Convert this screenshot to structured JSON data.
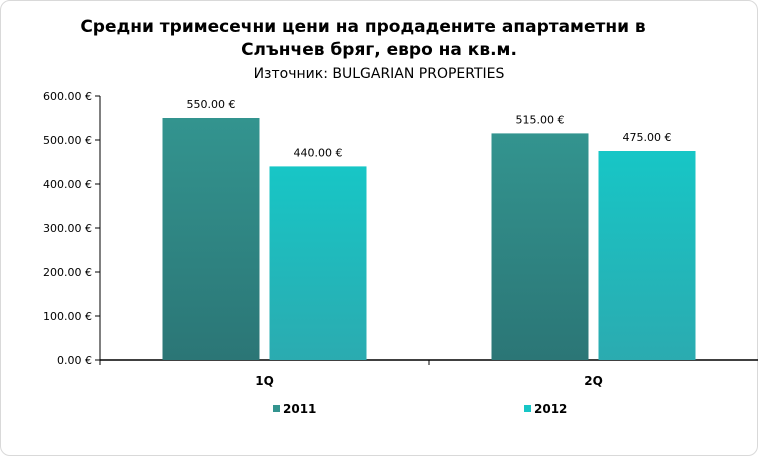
{
  "chart_data": {
    "type": "bar",
    "title_line1": "Средни тримесечни цени на продадените апартаметни в",
    "title_line2": "Слънчев бряг, евро на кв.м.",
    "subtitle": "Източник: BULGARIAN PROPERTIES",
    "categories": [
      "1Q",
      "2Q"
    ],
    "series": [
      {
        "name": "2011",
        "values": [
          550,
          515
        ],
        "color_top": "#33948f",
        "color_bottom": "#2b7676"
      },
      {
        "name": "2012",
        "values": [
          440,
          475
        ],
        "color_top": "#17c6c6",
        "color_bottom": "#2babb0"
      }
    ],
    "data_labels": [
      [
        "550.00 €",
        "515.00 €"
      ],
      [
        "440.00 €",
        "475.00 €"
      ]
    ],
    "yticks": [
      "0.00 €",
      "100.00 €",
      "200.00 €",
      "300.00 €",
      "400.00 €",
      "500.00 €",
      "600.00 €"
    ],
    "ylim": [
      0,
      600
    ],
    "grid": false,
    "legend_position": "bottom"
  }
}
